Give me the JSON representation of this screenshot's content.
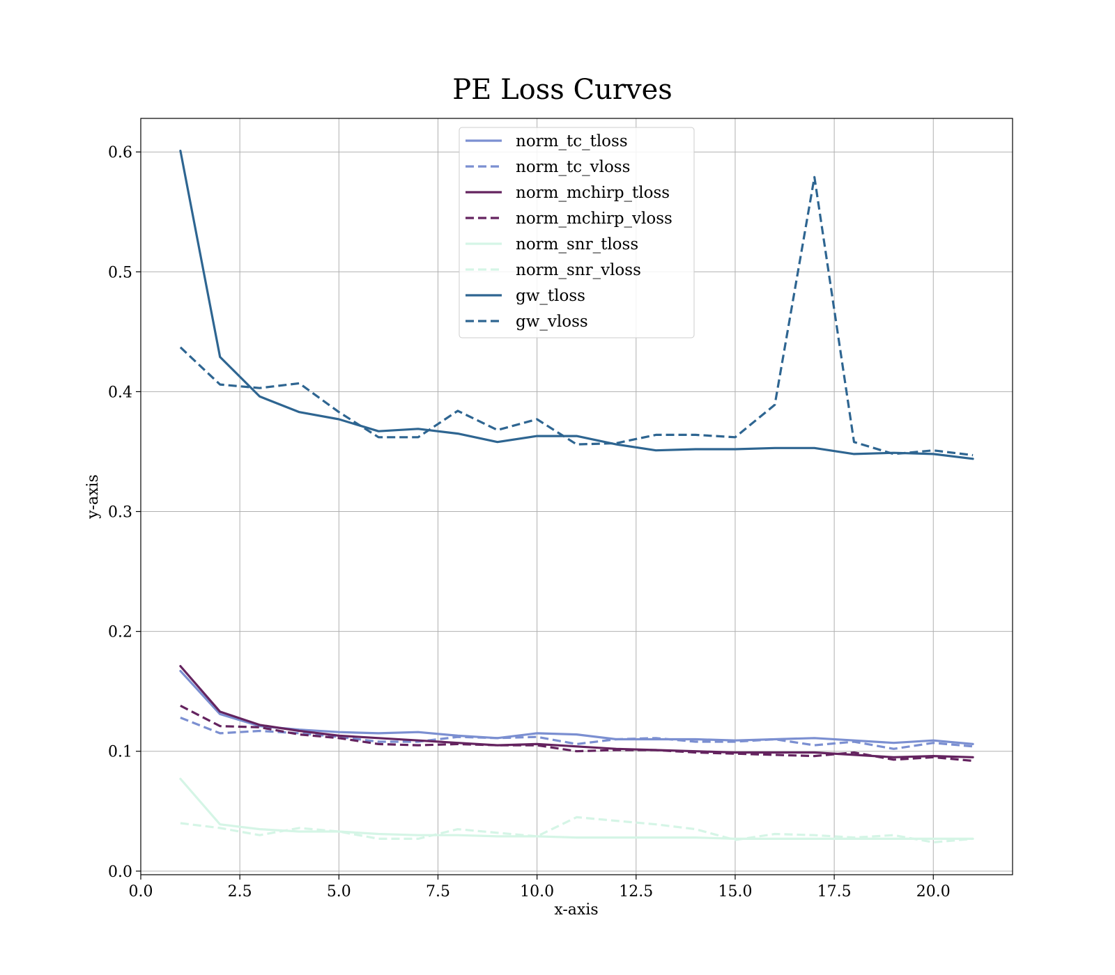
{
  "chart_data": {
    "type": "line",
    "title": "PE Loss Curves",
    "xlabel": "x-axis",
    "ylabel": "y-axis",
    "xlim": [
      0,
      22
    ],
    "ylim": [
      -0.003,
      0.628
    ],
    "xticks": [
      0,
      2.5,
      5,
      7.5,
      10,
      12.5,
      15,
      17.5,
      20
    ],
    "xtick_labels": [
      "0.0",
      "2.5",
      "5.0",
      "7.5",
      "10.0",
      "12.5",
      "15.0",
      "17.5",
      "20.0"
    ],
    "yticks": [
      0,
      0.1,
      0.2,
      0.3,
      0.4,
      0.5,
      0.6
    ],
    "ytick_labels": [
      "0.0",
      "0.1",
      "0.2",
      "0.3",
      "0.4",
      "0.5",
      "0.6"
    ],
    "grid": true,
    "legend_position": "upper-center",
    "x": [
      1,
      2,
      3,
      4,
      5,
      6,
      7,
      8,
      9,
      10,
      11,
      12,
      13,
      14,
      15,
      16,
      17,
      18,
      19,
      20,
      21
    ],
    "series": [
      {
        "name": "norm_tc_tloss",
        "color": "#7b8fd1",
        "dash": "solid",
        "values": [
          0.167,
          0.131,
          0.121,
          0.118,
          0.116,
          0.115,
          0.116,
          0.113,
          0.111,
          0.115,
          0.114,
          0.11,
          0.11,
          0.11,
          0.109,
          0.11,
          0.111,
          0.109,
          0.107,
          0.109,
          0.106
        ]
      },
      {
        "name": "norm_tc_vloss",
        "color": "#7b8fd1",
        "dash": "dashed",
        "values": [
          0.128,
          0.115,
          0.117,
          0.115,
          0.112,
          0.108,
          0.108,
          0.112,
          0.111,
          0.112,
          0.106,
          0.11,
          0.111,
          0.108,
          0.108,
          0.11,
          0.105,
          0.108,
          0.102,
          0.107,
          0.104
        ]
      },
      {
        "name": "norm_mchirp_tloss",
        "color": "#64235f",
        "dash": "solid",
        "values": [
          0.171,
          0.133,
          0.122,
          0.117,
          0.113,
          0.111,
          0.109,
          0.107,
          0.105,
          0.106,
          0.104,
          0.102,
          0.101,
          0.1,
          0.099,
          0.099,
          0.099,
          0.097,
          0.095,
          0.096,
          0.095
        ]
      },
      {
        "name": "norm_mchirp_vloss",
        "color": "#64235f",
        "dash": "dashed",
        "values": [
          0.138,
          0.121,
          0.12,
          0.114,
          0.111,
          0.106,
          0.105,
          0.106,
          0.105,
          0.105,
          0.1,
          0.101,
          0.101,
          0.099,
          0.098,
          0.097,
          0.096,
          0.099,
          0.093,
          0.095,
          0.092
        ]
      },
      {
        "name": "norm_snr_tloss",
        "color": "#d5f5e6",
        "dash": "solid",
        "values": [
          0.077,
          0.039,
          0.035,
          0.033,
          0.033,
          0.031,
          0.03,
          0.03,
          0.029,
          0.029,
          0.028,
          0.028,
          0.028,
          0.028,
          0.027,
          0.027,
          0.027,
          0.027,
          0.027,
          0.027,
          0.027
        ]
      },
      {
        "name": "norm_snr_vloss",
        "color": "#d5f5e6",
        "dash": "dashed",
        "values": [
          0.04,
          0.036,
          0.03,
          0.036,
          0.033,
          0.027,
          0.027,
          0.035,
          0.032,
          0.029,
          0.045,
          0.042,
          0.039,
          0.035,
          0.026,
          0.031,
          0.03,
          0.028,
          0.03,
          0.024,
          0.027
        ]
      },
      {
        "name": "gw_tloss",
        "color": "#2e6591",
        "dash": "solid",
        "values": [
          0.601,
          0.429,
          0.396,
          0.383,
          0.377,
          0.367,
          0.369,
          0.365,
          0.358,
          0.363,
          0.363,
          0.356,
          0.351,
          0.352,
          0.352,
          0.353,
          0.353,
          0.348,
          0.349,
          0.348,
          0.344
        ]
      },
      {
        "name": "gw_vloss",
        "color": "#2e6591",
        "dash": "dashed",
        "values": [
          0.437,
          0.406,
          0.403,
          0.407,
          0.383,
          0.362,
          0.362,
          0.384,
          0.368,
          0.377,
          0.356,
          0.357,
          0.364,
          0.364,
          0.362,
          0.389,
          0.579,
          0.358,
          0.348,
          0.351,
          0.347
        ]
      }
    ]
  }
}
